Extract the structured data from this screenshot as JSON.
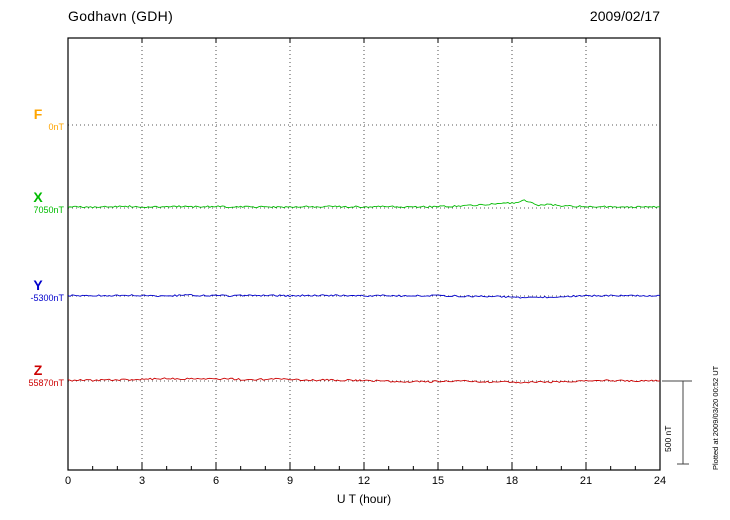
{
  "chart_data": {
    "type": "line",
    "title": "Godhavn (GDH)",
    "date": "2009/02/17",
    "xlabel": "U T (hour)",
    "xlim": [
      0,
      24
    ],
    "xticks": [
      0,
      3,
      6,
      9,
      12,
      15,
      18,
      21,
      24
    ],
    "x_minor_tick_hours": 1,
    "x_step_hours": 0.5,
    "scale_bar_nT": 500,
    "scale_bar_label": "500 nT",
    "plotted_note": "Plotted at 2009/03/20 00:52 UT",
    "series": [
      {
        "name": "F",
        "baseline_label": "0nT",
        "color": "#FFA500",
        "offsets_nT": []
      },
      {
        "name": "X",
        "baseline_label": "7050nT",
        "color": "#00BB00",
        "offsets_nT": [
          6,
          8,
          5,
          9,
          7,
          10,
          6,
          8,
          7,
          9,
          6,
          8,
          10,
          7,
          9,
          6,
          8,
          7,
          5,
          8,
          6,
          9,
          7,
          8,
          6,
          7,
          9,
          6,
          8,
          7,
          9,
          10,
          13,
          17,
          21,
          26,
          30,
          45,
          18,
          22,
          14,
          11,
          9,
          8,
          7,
          9,
          6,
          8,
          7
        ]
      },
      {
        "name": "Y",
        "baseline_label": "-5300nT",
        "color": "#0000CC",
        "offsets_nT": [
          2,
          3,
          1,
          4,
          2,
          3,
          5,
          2,
          1,
          3,
          4,
          2,
          3,
          1,
          2,
          4,
          3,
          2,
          1,
          3,
          2,
          4,
          3,
          2,
          1,
          2,
          3,
          1,
          2,
          3,
          2,
          1,
          -1,
          -3,
          -2,
          -4,
          -7,
          -11,
          -5,
          -9,
          -3,
          -1,
          0,
          2,
          3,
          2,
          3,
          2,
          3
        ]
      },
      {
        "name": "Z",
        "baseline_label": "55870nT",
        "color": "#CC0000",
        "offsets_nT": [
          4,
          5,
          3,
          6,
          8,
          7,
          10,
          13,
          16,
          12,
          15,
          13,
          11,
          14,
          9,
          7,
          11,
          13,
          9,
          7,
          5,
          6,
          4,
          5,
          3,
          2,
          -2,
          -4,
          -3,
          -5,
          -2,
          0,
          1,
          -3,
          -6,
          -4,
          -8,
          -11,
          -5,
          -8,
          -3,
          -2,
          0,
          2,
          3,
          1,
          2,
          1,
          2
        ]
      }
    ]
  }
}
